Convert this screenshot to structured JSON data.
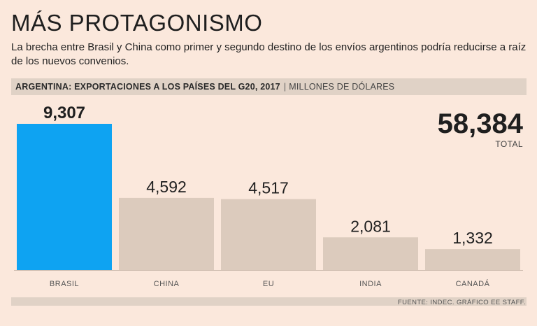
{
  "title": "MÁS PROTAGONISMO",
  "subtitle": "La brecha entre Brasil y China como primer y segundo destino de los envíos argentinos podría reducirse a raíz de los nuevos convenios.",
  "header": {
    "label": "ARGENTINA: EXPORTACIONES A LOS PAÍSES DEL G20, 2017",
    "separator": "|",
    "unit": "MILLONES DE DÓLARES"
  },
  "total": {
    "value": "58,384",
    "label": "TOTAL"
  },
  "source": "FUENTE: INDEC. GRÁFICO EE STAFF.",
  "colors": {
    "highlight": "#0ea3f2",
    "bar": "#dccbbd",
    "background": "#fbe8dc"
  },
  "chart_data": {
    "type": "bar",
    "title": "ARGENTINA: EXPORTACIONES A LOS PAÍSES DEL G20, 2017",
    "ylabel": "MILLONES DE DÓLARES",
    "xlabel": "",
    "categories": [
      "BRASIL",
      "CHINA",
      "EU",
      "INDIA",
      "CANADÁ"
    ],
    "values": [
      9307,
      4592,
      4517,
      2081,
      1332
    ],
    "value_labels": [
      "9,307",
      "4,592",
      "4,517",
      "2,081",
      "1,332"
    ],
    "highlight_index": 0,
    "ylim": [
      0,
      9307
    ],
    "grid": false
  }
}
